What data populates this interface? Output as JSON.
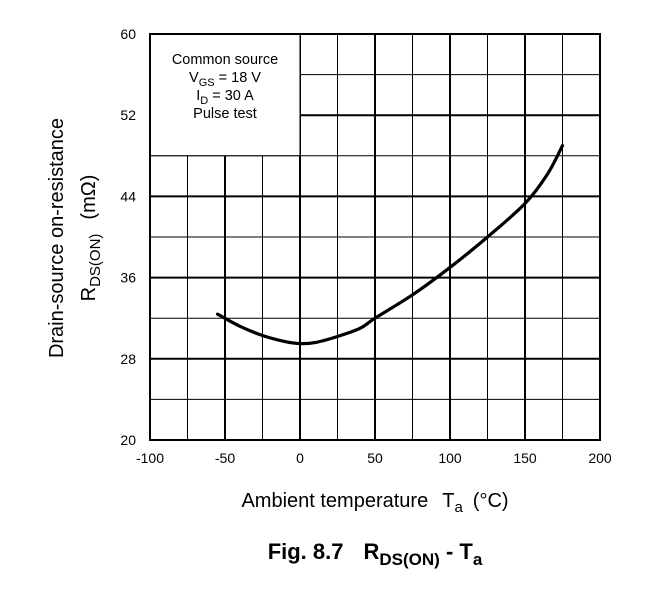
{
  "chart_data": {
    "type": "line",
    "xlabel": "Ambient temperature",
    "xlabel_symbol": "T",
    "xlabel_sub": "a",
    "xlabel_unit": "(°C)",
    "ylabel_line1": "Drain-source on-resistance",
    "ylabel_symbol": "R",
    "ylabel_sub": "DS(ON)",
    "ylabel_unit": "(mΩ)",
    "xlim": [
      -100,
      200
    ],
    "ylim": [
      20,
      60
    ],
    "x_ticks": [
      -100,
      -50,
      0,
      50,
      100,
      150,
      200
    ],
    "y_ticks": [
      20,
      28,
      36,
      44,
      52,
      60
    ],
    "x_minor_step": 25,
    "y_minor_step": 4,
    "grid": true,
    "legend": {
      "placement": "top-left",
      "lines": [
        {
          "main": "Common source",
          "sub": "",
          "rest": ""
        },
        {
          "main": "V",
          "sub": "GS",
          "rest": " = 18 V"
        },
        {
          "main": "I",
          "sub": "D",
          "rest": " = 30 A"
        },
        {
          "main": "Pulse test",
          "sub": "",
          "rest": ""
        }
      ]
    },
    "series": [
      {
        "x": [
          -55,
          -40,
          -25,
          -10,
          0,
          10,
          25,
          40,
          50,
          75,
          100,
          125,
          150,
          165,
          175
        ],
        "y": [
          32.4,
          31.2,
          30.3,
          29.7,
          29.5,
          29.6,
          30.2,
          31.0,
          32.0,
          34.3,
          37.0,
          40.0,
          43.3,
          46.2,
          49.0
        ]
      }
    ]
  },
  "caption": {
    "label": "Fig. 8.7",
    "r": "R",
    "r_sub": "DS(ON)",
    "dash": " - ",
    "t": "T",
    "t_sub": "a"
  },
  "colors": {
    "grid": "#000000",
    "curve": "#000000",
    "background": "#ffffff"
  }
}
